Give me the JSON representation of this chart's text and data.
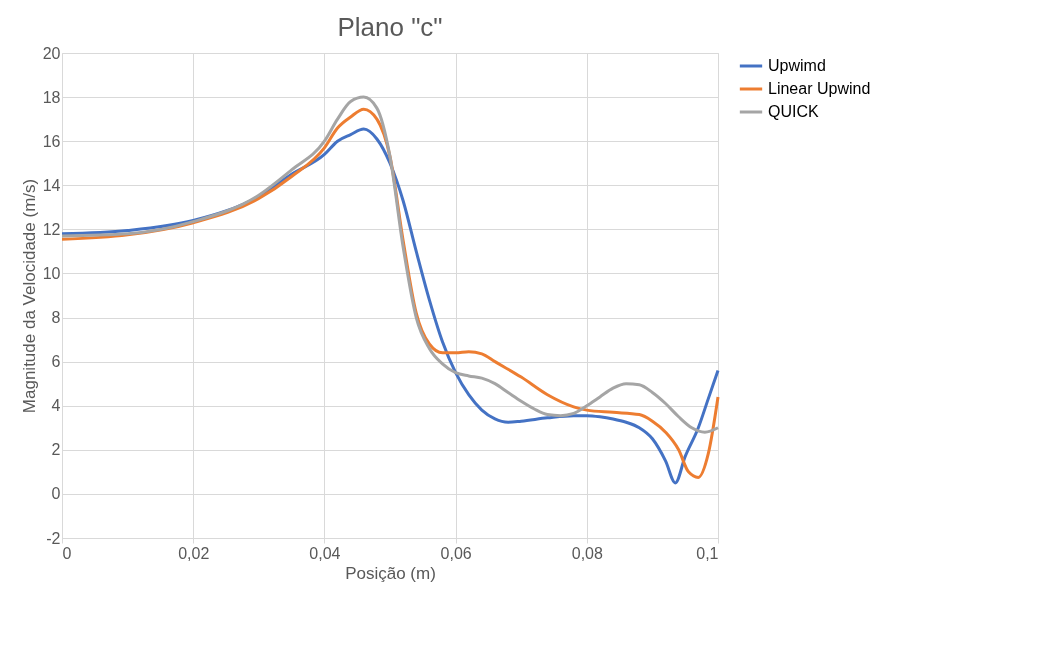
{
  "chart_data": {
    "type": "line",
    "title": "Plano \"c\"",
    "xlabel": "Posição (m)",
    "ylabel": "Magnitude da Velocidade (m/s)",
    "xlim": [
      0,
      0.1
    ],
    "xticks": [
      {
        "value": 0,
        "label": "0"
      },
      {
        "value": 0.02,
        "label": "0,02"
      },
      {
        "value": 0.04,
        "label": "0,04"
      },
      {
        "value": 0.06,
        "label": "0,06"
      },
      {
        "value": 0.08,
        "label": "0,08"
      },
      {
        "value": 0.1,
        "label": "0,1"
      }
    ],
    "ylim": [
      -2,
      20
    ],
    "yticks": [
      -2,
      0,
      2,
      4,
      6,
      8,
      10,
      12,
      14,
      16,
      18,
      20
    ],
    "grid": true,
    "legend": "right",
    "line_style": "solid",
    "marker": "none",
    "series": [
      {
        "name": "Upwimd",
        "color": "#4472c4",
        "x": [
          0,
          0.01,
          0.02,
          0.03,
          0.035,
          0.04,
          0.042,
          0.044,
          0.046,
          0.048,
          0.05,
          0.052,
          0.054,
          0.056,
          0.058,
          0.06,
          0.062,
          0.064,
          0.066,
          0.068,
          0.07,
          0.074,
          0.078,
          0.08,
          0.082,
          0.084,
          0.086,
          0.088,
          0.09,
          0.092,
          0.0935,
          0.095,
          0.097,
          0.0985,
          0.1
        ],
        "values": [
          11.8,
          11.95,
          12.4,
          13.5,
          14.5,
          15.4,
          16.0,
          16.3,
          16.55,
          16.1,
          15.0,
          13.3,
          11.0,
          8.8,
          6.9,
          5.5,
          4.5,
          3.8,
          3.4,
          3.25,
          3.3,
          3.45,
          3.55,
          3.55,
          3.5,
          3.4,
          3.25,
          3.0,
          2.5,
          1.5,
          0.5,
          1.7,
          3.0,
          4.3,
          5.6
        ]
      },
      {
        "name": "Linear Upwind",
        "color": "#ed7d31",
        "x": [
          0,
          0.01,
          0.02,
          0.03,
          0.035,
          0.04,
          0.042,
          0.044,
          0.046,
          0.048,
          0.05,
          0.052,
          0.054,
          0.056,
          0.058,
          0.06,
          0.062,
          0.064,
          0.066,
          0.07,
          0.074,
          0.078,
          0.08,
          0.084,
          0.088,
          0.09,
          0.092,
          0.094,
          0.0955,
          0.097,
          0.0985,
          0.1
        ],
        "values": [
          11.55,
          11.75,
          12.3,
          13.4,
          14.4,
          15.7,
          16.6,
          17.1,
          17.45,
          17.0,
          15.3,
          11.5,
          8.2,
          6.8,
          6.4,
          6.4,
          6.45,
          6.35,
          6.0,
          5.3,
          4.5,
          3.95,
          3.8,
          3.7,
          3.6,
          3.3,
          2.8,
          2.0,
          1.0,
          0.75,
          1.8,
          4.4
        ]
      },
      {
        "name": "QUICK",
        "color": "#a5a5a5",
        "x": [
          0,
          0.01,
          0.02,
          0.03,
          0.035,
          0.04,
          0.042,
          0.044,
          0.046,
          0.048,
          0.05,
          0.052,
          0.054,
          0.056,
          0.058,
          0.06,
          0.062,
          0.064,
          0.066,
          0.068,
          0.07,
          0.072,
          0.074,
          0.076,
          0.078,
          0.08,
          0.082,
          0.084,
          0.086,
          0.088,
          0.09,
          0.092,
          0.094,
          0.096,
          0.098,
          0.1
        ],
        "values": [
          11.7,
          11.8,
          12.35,
          13.55,
          14.7,
          16.0,
          17.0,
          17.8,
          18.0,
          17.5,
          15.3,
          11.2,
          8.0,
          6.6,
          5.9,
          5.5,
          5.35,
          5.25,
          5.0,
          4.6,
          4.2,
          3.85,
          3.6,
          3.55,
          3.65,
          4.0,
          4.4,
          4.8,
          5.0,
          4.95,
          4.6,
          4.1,
          3.5,
          3.0,
          2.8,
          3.0
        ]
      }
    ]
  }
}
